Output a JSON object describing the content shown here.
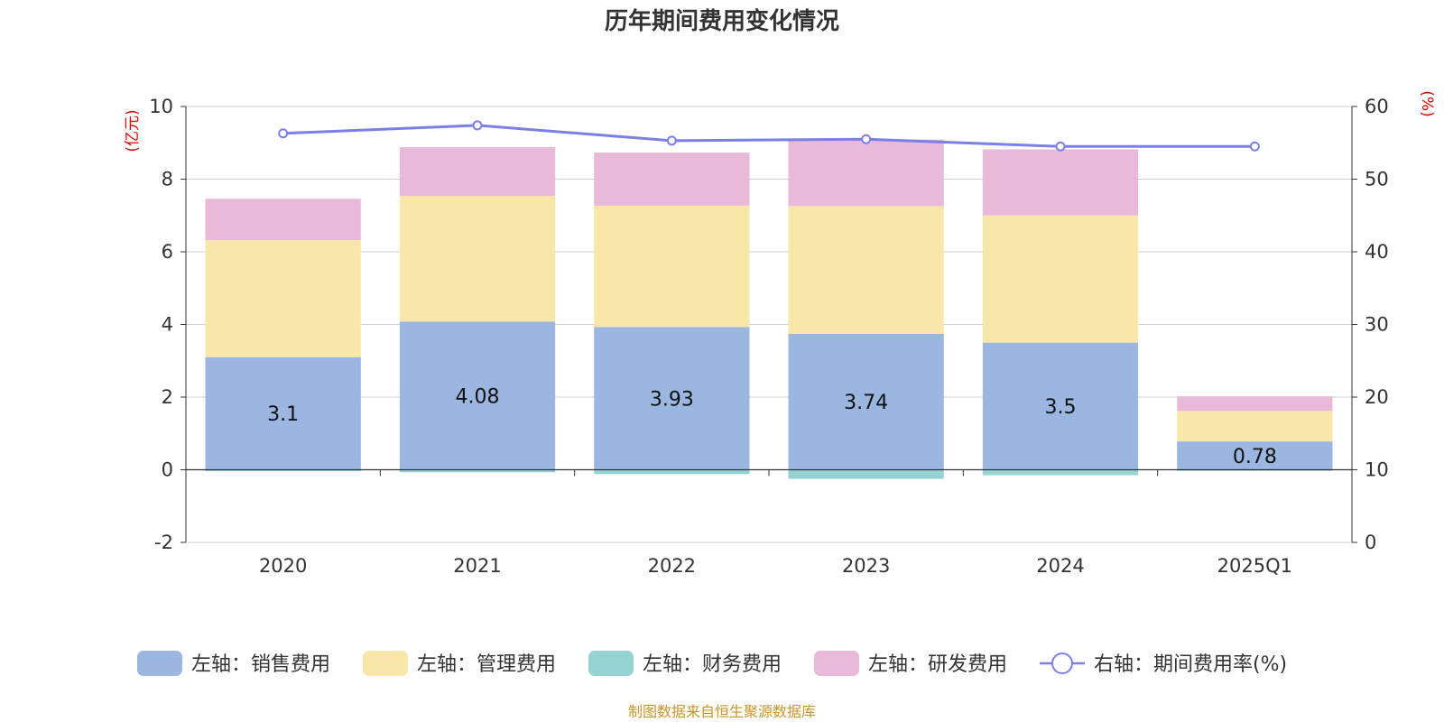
{
  "chart_data": {
    "type": "bar",
    "stacked": true,
    "title": "历年期间费用变化情况",
    "categories": [
      "2020",
      "2021",
      "2022",
      "2023",
      "2024",
      "2025Q1"
    ],
    "series": [
      {
        "name": "左轴：销售费用",
        "axis": "left",
        "color": "#9bb6e0",
        "values": [
          3.1,
          4.08,
          3.93,
          3.74,
          3.5,
          0.78
        ],
        "labels": [
          "3.1",
          "4.08",
          "3.93",
          "3.74",
          "3.5",
          "0.78"
        ]
      },
      {
        "name": "左轴：管理费用",
        "axis": "left",
        "color": "#f8e7a8",
        "values": [
          3.22,
          3.46,
          3.34,
          3.52,
          3.5,
          0.84
        ]
      },
      {
        "name": "左轴：财务费用",
        "axis": "left",
        "color": "#94d3d2",
        "values": [
          -0.04,
          -0.07,
          -0.12,
          -0.25,
          -0.15,
          -0.03
        ]
      },
      {
        "name": "左轴：研发费用",
        "axis": "left",
        "color": "#e8b9d9",
        "values": [
          1.14,
          1.34,
          1.46,
          1.83,
          1.82,
          0.4
        ]
      },
      {
        "name": "右轴：期间费用率(%)",
        "axis": "right",
        "type": "line",
        "color": "#7b7fe8",
        "values": [
          56.3,
          57.4,
          55.3,
          55.5,
          54.5,
          54.5
        ]
      }
    ],
    "y_left": {
      "unit": "(亿元)",
      "range": [
        -2,
        10
      ],
      "ticks": [
        "-2",
        "0",
        "2",
        "4",
        "6",
        "8",
        "10"
      ]
    },
    "y_right": {
      "unit": "(%)",
      "range": [
        0,
        60
      ],
      "ticks": [
        "0",
        "10",
        "20",
        "30",
        "40",
        "50",
        "60"
      ]
    },
    "grid": true,
    "legend_position": "bottom"
  },
  "source_note": "制图数据来自恒生聚源数据库"
}
